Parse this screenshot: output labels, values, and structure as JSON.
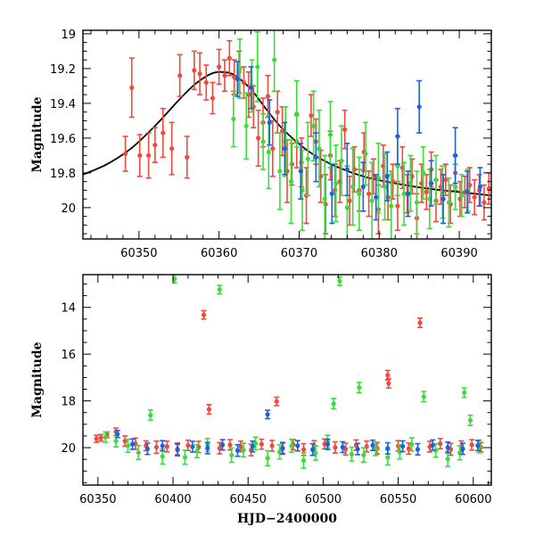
{
  "colors": {
    "red": "#f04a3a",
    "green": "#3cdc3c",
    "blue": "#1f5fe0",
    "model": "#000000"
  },
  "chart_data": [
    {
      "type": "scatter",
      "title": "",
      "xlabel": "",
      "ylabel": "Magnitude",
      "xlim": [
        60343,
        60394
      ],
      "ylim": [
        20.18,
        18.98
      ],
      "y_inverted": true,
      "grid": false,
      "xticks": [
        60350,
        60360,
        60370,
        60380,
        60390
      ],
      "yticks": [
        19,
        19.2,
        19.4,
        19.6,
        19.8,
        20
      ],
      "xtick_labels": [
        "60350",
        "60360",
        "60370",
        "60380",
        "60390"
      ],
      "ytick_labels": [
        "19",
        "19.2",
        "19.4",
        "19.6",
        "19.8",
        "20"
      ],
      "model_curve": {
        "color": "model",
        "x": [
          60343,
          60346,
          60349,
          60352,
          60355,
          60357,
          60359,
          60360.5,
          60362,
          60364,
          60366,
          60368,
          60371,
          60374,
          60378,
          60382,
          60386,
          60390,
          60394
        ],
        "y": [
          19.81,
          19.75,
          19.66,
          19.53,
          19.38,
          19.29,
          19.23,
          19.22,
          19.24,
          19.32,
          19.44,
          19.55,
          19.67,
          19.75,
          19.82,
          19.86,
          19.89,
          19.91,
          19.93
        ]
      },
      "series": [
        {
          "color": "red",
          "x": [
            60348.3,
            60349.1,
            60350.1,
            60351.2,
            60352.0,
            60353.0,
            60354.1,
            60355.1,
            60356.0,
            60356.9,
            60357.6,
            60358.4,
            60359.2,
            60360.0,
            60360.7,
            60361.3,
            60361.9,
            60362.5,
            60363.1,
            60363.7,
            60364.3,
            60364.9,
            60365.5,
            60366.1,
            60366.7,
            60367.3,
            60367.9,
            60368.5,
            60369.1,
            60369.7,
            60370.3,
            60370.9,
            60371.5,
            60372.1,
            60372.7,
            60373.3,
            60373.9,
            60374.5,
            60375.1,
            60375.7,
            60376.3,
            60376.9,
            60377.5,
            60378.1,
            60378.7,
            60379.3,
            60379.9,
            60380.5,
            60381.1,
            60381.7,
            60382.3,
            60382.9,
            60383.5,
            60384.1,
            60384.7,
            60385.3,
            60385.9,
            60386.5,
            60387.1,
            60387.7,
            60388.3,
            60388.9,
            60389.5,
            60390.1,
            60390.7,
            60391.3,
            60391.9,
            60392.5,
            60393.1,
            60393.7
          ],
          "y": [
            19.69,
            19.31,
            19.7,
            19.7,
            19.64,
            19.57,
            19.66,
            19.24,
            19.71,
            19.21,
            19.23,
            19.28,
            19.37,
            19.19,
            19.24,
            19.14,
            19.25,
            19.22,
            19.28,
            19.35,
            19.42,
            19.6,
            19.51,
            19.36,
            19.66,
            19.45,
            19.56,
            19.79,
            19.75,
            19.62,
            19.74,
            19.93,
            19.47,
            19.62,
            19.82,
            19.98,
            19.7,
            19.9,
            19.85,
            19.55,
            19.96,
            19.78,
            19.9,
            19.68,
            19.92,
            19.82,
            20.01,
            19.76,
            19.94,
            19.85,
            19.99,
            19.77,
            19.92,
            19.82,
            20.06,
            19.86,
            19.91,
            19.78,
            19.96,
            19.88,
            19.84,
            19.98,
            19.8,
            19.95,
            19.91,
            19.87,
            19.94,
            19.9,
            19.97,
            19.89
          ],
          "err": [
            0.1,
            0.17,
            0.12,
            0.13,
            0.1,
            0.14,
            0.15,
            0.12,
            0.12,
            0.11,
            0.12,
            0.1,
            0.09,
            0.1,
            0.09,
            0.1,
            0.1,
            0.12,
            0.09,
            0.13,
            0.12,
            0.16,
            0.14,
            0.12,
            0.16,
            0.12,
            0.14,
            0.18,
            0.12,
            0.15,
            0.14,
            0.16,
            0.12,
            0.13,
            0.15,
            0.17,
            0.14,
            0.15,
            0.12,
            0.11,
            0.14,
            0.13,
            0.12,
            0.11,
            0.13,
            0.1,
            0.14,
            0.12,
            0.13,
            0.1,
            0.14,
            0.12,
            0.11,
            0.1,
            0.14,
            0.11,
            0.1,
            0.1,
            0.12,
            0.1,
            0.09,
            0.11,
            0.1,
            0.1,
            0.09,
            0.1,
            0.1,
            0.09,
            0.1,
            0.09
          ]
        },
        {
          "color": "green",
          "x": [
            60361.8,
            60362.6,
            60363.4,
            60364.1,
            60364.8,
            60365.5,
            60366.2,
            60366.9,
            60367.6,
            60368.3,
            60369.0,
            60369.7,
            60370.4,
            60371.1,
            60371.8,
            60372.5,
            60373.2,
            60373.9,
            60374.6,
            60375.3,
            60376.0,
            60376.7,
            60377.5,
            60378.3,
            60379.1,
            60379.9,
            60380.7,
            60381.5,
            60382.3,
            60383.1,
            60383.9,
            60384.7,
            60385.5,
            60386.3,
            60387.1,
            60387.9,
            60388.7,
            60389.5,
            60390.3,
            60391.1
          ],
          "y": [
            19.49,
            19.2,
            19.53,
            19.3,
            19.19,
            19.62,
            19.68,
            19.15,
            19.79,
            19.62,
            19.85,
            19.46,
            19.9,
            19.72,
            19.53,
            19.66,
            19.95,
            19.58,
            19.86,
            19.73,
            20.0,
            19.88,
            19.92,
            19.69,
            19.96,
            19.83,
            19.88,
            19.99,
            19.76,
            19.92,
            19.86,
            19.97,
            19.8,
            19.95,
            19.84,
            19.91,
            19.97,
            19.88,
            19.93,
            19.9
          ],
          "err": [
            0.16,
            0.17,
            0.19,
            0.15,
            0.2,
            0.16,
            0.21,
            0.18,
            0.22,
            0.2,
            0.24,
            0.19,
            0.23,
            0.21,
            0.2,
            0.22,
            0.25,
            0.19,
            0.22,
            0.2,
            0.24,
            0.22,
            0.21,
            0.18,
            0.22,
            0.2,
            0.19,
            0.2,
            0.17,
            0.18,
            0.16,
            0.18,
            0.15,
            0.17,
            0.14,
            0.15,
            0.14,
            0.13,
            0.12,
            0.12
          ]
        },
        {
          "color": "blue",
          "x": [
            60362.3,
            60364.0,
            60366.3,
            60368.2,
            60370.2,
            60372.1,
            60374.1,
            60376.0,
            60378.0,
            60379.6,
            60381.0,
            60382.3,
            60383.6,
            60385.0,
            60386.5,
            60388.0,
            60389.5,
            60391.0,
            60392.6
          ],
          "y": [
            19.26,
            19.31,
            19.51,
            19.66,
            19.79,
            19.71,
            19.92,
            19.78,
            19.88,
            19.94,
            19.82,
            19.59,
            19.92,
            19.42,
            19.86,
            19.95,
            19.7,
            19.91,
            19.88
          ],
          "err": [
            0.1,
            0.12,
            0.13,
            0.15,
            0.16,
            0.14,
            0.17,
            0.15,
            0.14,
            0.13,
            0.14,
            0.16,
            0.13,
            0.15,
            0.13,
            0.14,
            0.16,
            0.12,
            0.11
          ]
        }
      ]
    },
    {
      "type": "scatter",
      "title": "",
      "xlabel": "HJD−2400000",
      "ylabel": "Magnitude",
      "xlim": [
        60340,
        60612
      ],
      "ylim": [
        21.6,
        12.6
      ],
      "y_inverted": true,
      "grid": false,
      "xticks": [
        60350,
        60400,
        60450,
        60500,
        60550,
        60600
      ],
      "yticks": [
        14,
        16,
        18,
        20
      ],
      "xtick_labels": [
        "60350",
        "60400",
        "60450",
        "60500",
        "60550",
        "60600"
      ],
      "ytick_labels": [
        "14",
        "16",
        "18",
        "20"
      ],
      "series": [
        {
          "color": "red",
          "x": [
            60349,
            60352,
            60356,
            60362,
            60368,
            60375,
            60382,
            60389,
            60396,
            60403,
            60410,
            60417,
            60420.5,
            60424,
            60431,
            60438,
            60445,
            60452,
            60459,
            60466,
            60469,
            60473,
            60480,
            60487,
            60494,
            60501,
            60508,
            60515,
            60522,
            60529,
            60536,
            60543,
            60543.6,
            60550,
            60557,
            60564.5,
            60571,
            60578,
            60585,
            60592,
            60599,
            60605
          ],
          "y": [
            19.62,
            19.58,
            19.45,
            19.32,
            19.72,
            19.83,
            19.92,
            19.98,
            19.95,
            20.05,
            19.9,
            19.97,
            14.32,
            18.36,
            20.02,
            19.88,
            19.95,
            20.1,
            19.85,
            19.92,
            18.02,
            20.01,
            19.87,
            20.08,
            19.93,
            19.84,
            19.99,
            20.06,
            19.89,
            19.95,
            20.03,
            16.9,
            17.25,
            19.92,
            20.04,
            14.66,
            19.96,
            19.83,
            20.07,
            19.94,
            19.88,
            19.98
          ],
          "err": [
            0.15,
            0.14,
            0.12,
            0.16,
            0.22,
            0.24,
            0.21,
            0.26,
            0.23,
            0.25,
            0.22,
            0.24,
            0.18,
            0.2,
            0.24,
            0.22,
            0.23,
            0.25,
            0.21,
            0.23,
            0.18,
            0.24,
            0.22,
            0.25,
            0.23,
            0.21,
            0.24,
            0.25,
            0.22,
            0.23,
            0.24,
            0.2,
            0.2,
            0.22,
            0.24,
            0.2,
            0.23,
            0.22,
            0.25,
            0.23,
            0.22,
            0.2
          ]
        },
        {
          "color": "green",
          "x": [
            60355,
            60362,
            60370,
            60377,
            60385,
            60393,
            60401,
            60408,
            60416,
            60423,
            60431,
            60439,
            60447,
            60455,
            60463,
            60471,
            60479,
            60487,
            60495,
            60503,
            60507,
            60511,
            60519,
            60524,
            60527,
            60535,
            60543,
            60551,
            60559,
            60567,
            60575,
            60583,
            60591,
            60594,
            60598,
            60604
          ],
          "y": [
            19.55,
            19.72,
            19.92,
            20.21,
            18.61,
            20.38,
            12.78,
            20.41,
            20.15,
            19.88,
            13.24,
            20.32,
            20.1,
            19.82,
            20.45,
            20.18,
            19.92,
            20.55,
            20.23,
            19.74,
            18.12,
            12.88,
            20.28,
            17.43,
            20.31,
            20.05,
            20.42,
            20.18,
            19.86,
            17.82,
            20.12,
            20.48,
            20.22,
            17.65,
            18.83,
            19.95
          ],
          "err": [
            0.22,
            0.25,
            0.28,
            0.3,
            0.22,
            0.32,
            0.18,
            0.3,
            0.28,
            0.27,
            0.18,
            0.31,
            0.29,
            0.27,
            0.32,
            0.3,
            0.28,
            0.33,
            0.3,
            0.27,
            0.22,
            0.18,
            0.3,
            0.22,
            0.31,
            0.29,
            0.32,
            0.3,
            0.28,
            0.22,
            0.29,
            0.33,
            0.3,
            0.2,
            0.22,
            0.27
          ]
        },
        {
          "color": "blue",
          "x": [
            60363,
            60373,
            60383,
            60393,
            60403,
            60413,
            60423,
            60433,
            60443,
            60453,
            60463,
            60473,
            60483,
            60493,
            60503,
            60513,
            60523,
            60533,
            60543,
            60553,
            60563,
            60573,
            60583,
            60593,
            60603
          ],
          "y": [
            19.42,
            19.85,
            20.05,
            19.92,
            20.1,
            19.96,
            20.02,
            19.88,
            20.12,
            19.95,
            18.58,
            20.04,
            19.92,
            20.08,
            19.86,
            19.98,
            20.06,
            19.9,
            20.03,
            19.94,
            20.07,
            19.89,
            19.99,
            20.05,
            19.91
          ],
          "err": [
            0.15,
            0.22,
            0.24,
            0.22,
            0.25,
            0.23,
            0.24,
            0.22,
            0.25,
            0.23,
            0.18,
            0.24,
            0.22,
            0.25,
            0.22,
            0.23,
            0.24,
            0.22,
            0.24,
            0.23,
            0.24,
            0.22,
            0.23,
            0.24,
            0.22
          ]
        }
      ]
    }
  ]
}
